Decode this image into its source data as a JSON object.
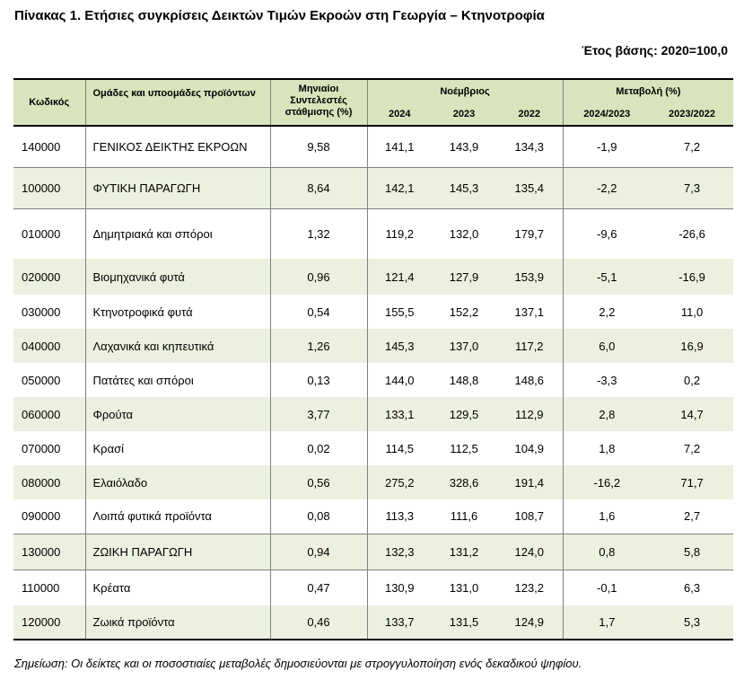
{
  "title": "Πίνακας 1. Ετήσιες συγκρίσεις Δεικτών Τιμών Εκροών στη Γεωργία – Κτηνοτροφία",
  "base_year": "Έτος βάσης: 2020=100,0",
  "headers": {
    "code": "Κωδικός",
    "groups": "Ομάδες και υποομάδες προϊόντων",
    "weights": "Μηνιαίοι Συντελεστές στάθμισης (%)",
    "november": "Νοέμβριος",
    "change": "Μεταβολή (%)",
    "y2024": "2024",
    "y2023": "2023",
    "y2022": "2022",
    "ch1": "2024/2023",
    "ch2": "2023/2022"
  },
  "rows": [
    {
      "code": "140000",
      "name": "ΓΕΝΙΚΟΣ ΔΕΙΚΤΗΣ ΕΚΡΟΩΝ",
      "weight": "9,58",
      "y2024": "141,1",
      "y2023": "143,9",
      "y2022": "134,3",
      "ch1": "-1,9",
      "ch2": "7,2"
    },
    {
      "code": "100000",
      "name": "ΦΥΤΙΚΗ ΠΑΡΑΓΩΓΗ",
      "weight": "8,64",
      "y2024": "142,1",
      "y2023": "145,3",
      "y2022": "135,4",
      "ch1": "-2,2",
      "ch2": "7,3"
    },
    {
      "code": "010000",
      "name": "Δημητριακά και σπόροι",
      "weight": "1,32",
      "y2024": "119,2",
      "y2023": "132,0",
      "y2022": "179,7",
      "ch1": "-9,6",
      "ch2": "-26,6"
    },
    {
      "code": "020000",
      "name": "Βιομηχανικά φυτά",
      "weight": "0,96",
      "y2024": "121,4",
      "y2023": "127,9",
      "y2022": "153,9",
      "ch1": "-5,1",
      "ch2": "-16,9"
    },
    {
      "code": "030000",
      "name": "Κτηνοτροφικά φυτά",
      "weight": "0,54",
      "y2024": "155,5",
      "y2023": "152,2",
      "y2022": "137,1",
      "ch1": "2,2",
      "ch2": "11,0"
    },
    {
      "code": "040000",
      "name": "Λαχανικά και κηπευτικά",
      "weight": "1,26",
      "y2024": "145,3",
      "y2023": "137,0",
      "y2022": "117,2",
      "ch1": "6,0",
      "ch2": "16,9"
    },
    {
      "code": "050000",
      "name": "Πατάτες και σπόροι",
      "weight": "0,13",
      "y2024": "144,0",
      "y2023": "148,8",
      "y2022": "148,6",
      "ch1": "-3,3",
      "ch2": "0,2"
    },
    {
      "code": "060000",
      "name": "Φρούτα",
      "weight": "3,77",
      "y2024": "133,1",
      "y2023": "129,5",
      "y2022": "112,9",
      "ch1": "2,8",
      "ch2": "14,7"
    },
    {
      "code": "070000",
      "name": "Κρασί",
      "weight": "0,02",
      "y2024": "114,5",
      "y2023": "112,5",
      "y2022": "104,9",
      "ch1": "1,8",
      "ch2": "7,2"
    },
    {
      "code": "080000",
      "name": "Ελαιόλαδο",
      "weight": "0,56",
      "y2024": "275,2",
      "y2023": "328,6",
      "y2022": "191,4",
      "ch1": "-16,2",
      "ch2": "71,7"
    },
    {
      "code": "090000",
      "name": "Λοιπά φυτικά προϊόντα",
      "weight": "0,08",
      "y2024": "113,3",
      "y2023": "111,6",
      "y2022": "108,7",
      "ch1": "1,6",
      "ch2": "2,7"
    },
    {
      "code": "130000",
      "name": "ΖΩΙΚΗ ΠΑΡΑΓΩΓΗ",
      "weight": "0,94",
      "y2024": "132,3",
      "y2023": "131,2",
      "y2022": "124,0",
      "ch1": "0,8",
      "ch2": "5,8"
    },
    {
      "code": "110000",
      "name": "Κρέατα",
      "weight": "0,47",
      "y2024": "130,9",
      "y2023": "131,0",
      "y2022": "123,2",
      "ch1": "-0,1",
      "ch2": "6,3"
    },
    {
      "code": "120000",
      "name": "Ζωικά προϊόντα",
      "weight": "0,46",
      "y2024": "133,7",
      "y2023": "131,5",
      "y2022": "124,9",
      "ch1": "1,7",
      "ch2": "5,3"
    }
  ],
  "note": "Σημείωση: Οι δείκτες και οι ποσοστιαίες μεταβολές δημοσιεύονται με στρογγυλοποίηση ενός δεκαδικού ψηφίου.",
  "colors": {
    "header_bg": "#d8e4bc",
    "stripe_bg": "#ebf1de"
  }
}
